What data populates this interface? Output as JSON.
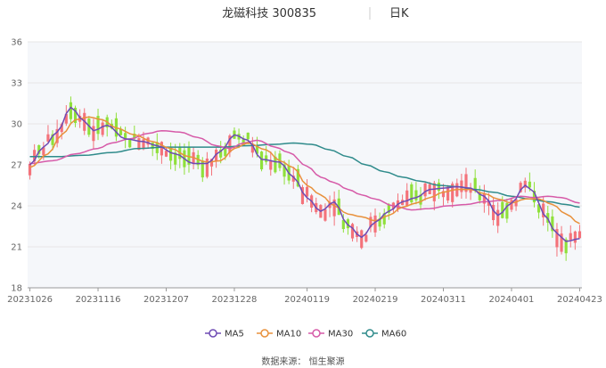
{
  "header": {
    "stock_name": "龙磁科技",
    "stock_code": "300835",
    "period_label": "日K"
  },
  "source_text": "数据来源：  恒生聚源",
  "colors": {
    "up": "#f4727a",
    "down": "#8fe03a",
    "ma5": "#6e4bb4",
    "ma10": "#e8913c",
    "ma30": "#d65aa8",
    "ma60": "#2f8b8b",
    "grid": "#e6e6e6",
    "plot_bg": "#f5f7fa"
  },
  "chart_data": {
    "type": "candlestick",
    "yaxis": {
      "min": 18,
      "max": 36,
      "ticks": [
        18,
        21,
        24,
        27,
        30,
        33,
        36
      ]
    },
    "xaxis": {
      "ticks": [
        {
          "label": "20231026",
          "index": 0
        },
        {
          "label": "20231116",
          "index": 15
        },
        {
          "label": "20231207",
          "index": 30
        },
        {
          "label": "20231228",
          "index": 45
        },
        {
          "label": "20240119",
          "index": 61
        },
        {
          "label": "20240219",
          "index": 76
        },
        {
          "label": "20240311",
          "index": 91
        },
        {
          "label": "20240401",
          "index": 106
        },
        {
          "label": "20240423",
          "index": 121
        }
      ]
    },
    "legend": [
      "MA5",
      "MA10",
      "MA30",
      "MA60"
    ],
    "series_keys": {
      "MA5": [
        [
          0,
          27.0
        ],
        [
          3,
          28.3
        ],
        [
          6,
          29.4
        ],
        [
          9,
          31.2
        ],
        [
          12,
          30.2
        ],
        [
          14,
          29.5
        ],
        [
          17,
          29.9
        ],
        [
          21,
          28.9
        ],
        [
          25,
          28.7
        ],
        [
          28,
          28.4
        ],
        [
          32,
          27.8
        ],
        [
          36,
          27.1
        ],
        [
          39,
          27.1
        ],
        [
          42,
          28.0
        ],
        [
          45,
          29.2
        ],
        [
          48,
          28.8
        ],
        [
          51,
          27.4
        ],
        [
          55,
          27.2
        ],
        [
          58,
          26.1
        ],
        [
          61,
          24.6
        ],
        [
          64,
          23.6
        ],
        [
          67,
          24.3
        ],
        [
          70,
          22.6
        ],
        [
          73,
          21.7
        ],
        [
          76,
          22.8
        ],
        [
          79,
          23.6
        ],
        [
          82,
          24.3
        ],
        [
          85,
          24.6
        ],
        [
          88,
          25.2
        ],
        [
          91,
          25.3
        ],
        [
          94,
          25.4
        ],
        [
          97,
          25.3
        ],
        [
          100,
          24.7
        ],
        [
          103,
          23.3
        ],
        [
          106,
          24.2
        ],
        [
          109,
          25.5
        ],
        [
          111,
          25.0
        ],
        [
          113,
          23.4
        ],
        [
          116,
          22.0
        ],
        [
          118,
          21.4
        ],
        [
          121,
          21.6
        ]
      ],
      "MA10": [
        [
          0,
          26.8
        ],
        [
          4,
          27.8
        ],
        [
          7,
          29.2
        ],
        [
          10,
          30.3
        ],
        [
          13,
          30.5
        ],
        [
          16,
          30.3
        ],
        [
          19,
          29.7
        ],
        [
          23,
          29.2
        ],
        [
          27,
          28.7
        ],
        [
          31,
          28.2
        ],
        [
          35,
          27.6
        ],
        [
          39,
          27.2
        ],
        [
          42,
          27.3
        ],
        [
          45,
          28.2
        ],
        [
          48,
          28.6
        ],
        [
          52,
          28.1
        ],
        [
          55,
          27.3
        ],
        [
          58,
          26.8
        ],
        [
          61,
          25.5
        ],
        [
          64,
          24.8
        ],
        [
          67,
          24.0
        ],
        [
          70,
          23.4
        ],
        [
          73,
          23.2
        ],
        [
          76,
          22.9
        ],
        [
          79,
          23.3
        ],
        [
          82,
          23.9
        ],
        [
          85,
          24.2
        ],
        [
          88,
          24.6
        ],
        [
          91,
          25.0
        ],
        [
          94,
          25.2
        ],
        [
          97,
          25.2
        ],
        [
          100,
          24.9
        ],
        [
          103,
          24.5
        ],
        [
          106,
          24.2
        ],
        [
          109,
          24.5
        ],
        [
          112,
          24.5
        ],
        [
          115,
          24.1
        ],
        [
          118,
          23.4
        ],
        [
          121,
          22.7
        ]
      ],
      "MA30": [
        [
          0,
          27.1
        ],
        [
          5,
          27.3
        ],
        [
          10,
          27.8
        ],
        [
          15,
          28.2
        ],
        [
          18,
          28.6
        ],
        [
          22,
          28.9
        ],
        [
          26,
          29.3
        ],
        [
          29,
          29.5
        ],
        [
          33,
          29.4
        ],
        [
          37,
          29.0
        ],
        [
          41,
          28.4
        ],
        [
          44,
          28.2
        ],
        [
          47,
          28.6
        ],
        [
          50,
          28.8
        ],
        [
          54,
          28.3
        ],
        [
          57,
          27.9
        ],
        [
          61,
          26.9
        ],
        [
          64,
          26.1
        ],
        [
          67,
          25.7
        ],
        [
          70,
          25.2
        ],
        [
          73,
          24.8
        ],
        [
          76,
          24.5
        ],
        [
          80,
          24.0
        ],
        [
          84,
          23.7
        ],
        [
          88,
          23.8
        ],
        [
          92,
          24.0
        ],
        [
          96,
          24.1
        ],
        [
          100,
          24.3
        ],
        [
          104,
          24.4
        ],
        [
          108,
          24.7
        ],
        [
          111,
          24.6
        ],
        [
          114,
          24.7
        ],
        [
          117,
          24.6
        ],
        [
          121,
          24.2
        ]
      ],
      "MA60": [
        [
          0,
          27.6
        ],
        [
          6,
          27.6
        ],
        [
          12,
          27.7
        ],
        [
          18,
          27.9
        ],
        [
          24,
          28.2
        ],
        [
          30,
          28.3
        ],
        [
          36,
          28.3
        ],
        [
          42,
          28.3
        ],
        [
          48,
          28.4
        ],
        [
          54,
          28.5
        ],
        [
          58,
          28.6
        ],
        [
          62,
          28.5
        ],
        [
          66,
          28.1
        ],
        [
          70,
          27.6
        ],
        [
          74,
          27.0
        ],
        [
          78,
          26.5
        ],
        [
          82,
          26.1
        ],
        [
          86,
          25.8
        ],
        [
          90,
          25.5
        ],
        [
          94,
          25.4
        ],
        [
          98,
          25.2
        ],
        [
          102,
          25.0
        ],
        [
          106,
          24.7
        ],
        [
          110,
          24.5
        ],
        [
          114,
          24.3
        ],
        [
          118,
          24.1
        ],
        [
          121,
          23.9
        ]
      ]
    }
  }
}
